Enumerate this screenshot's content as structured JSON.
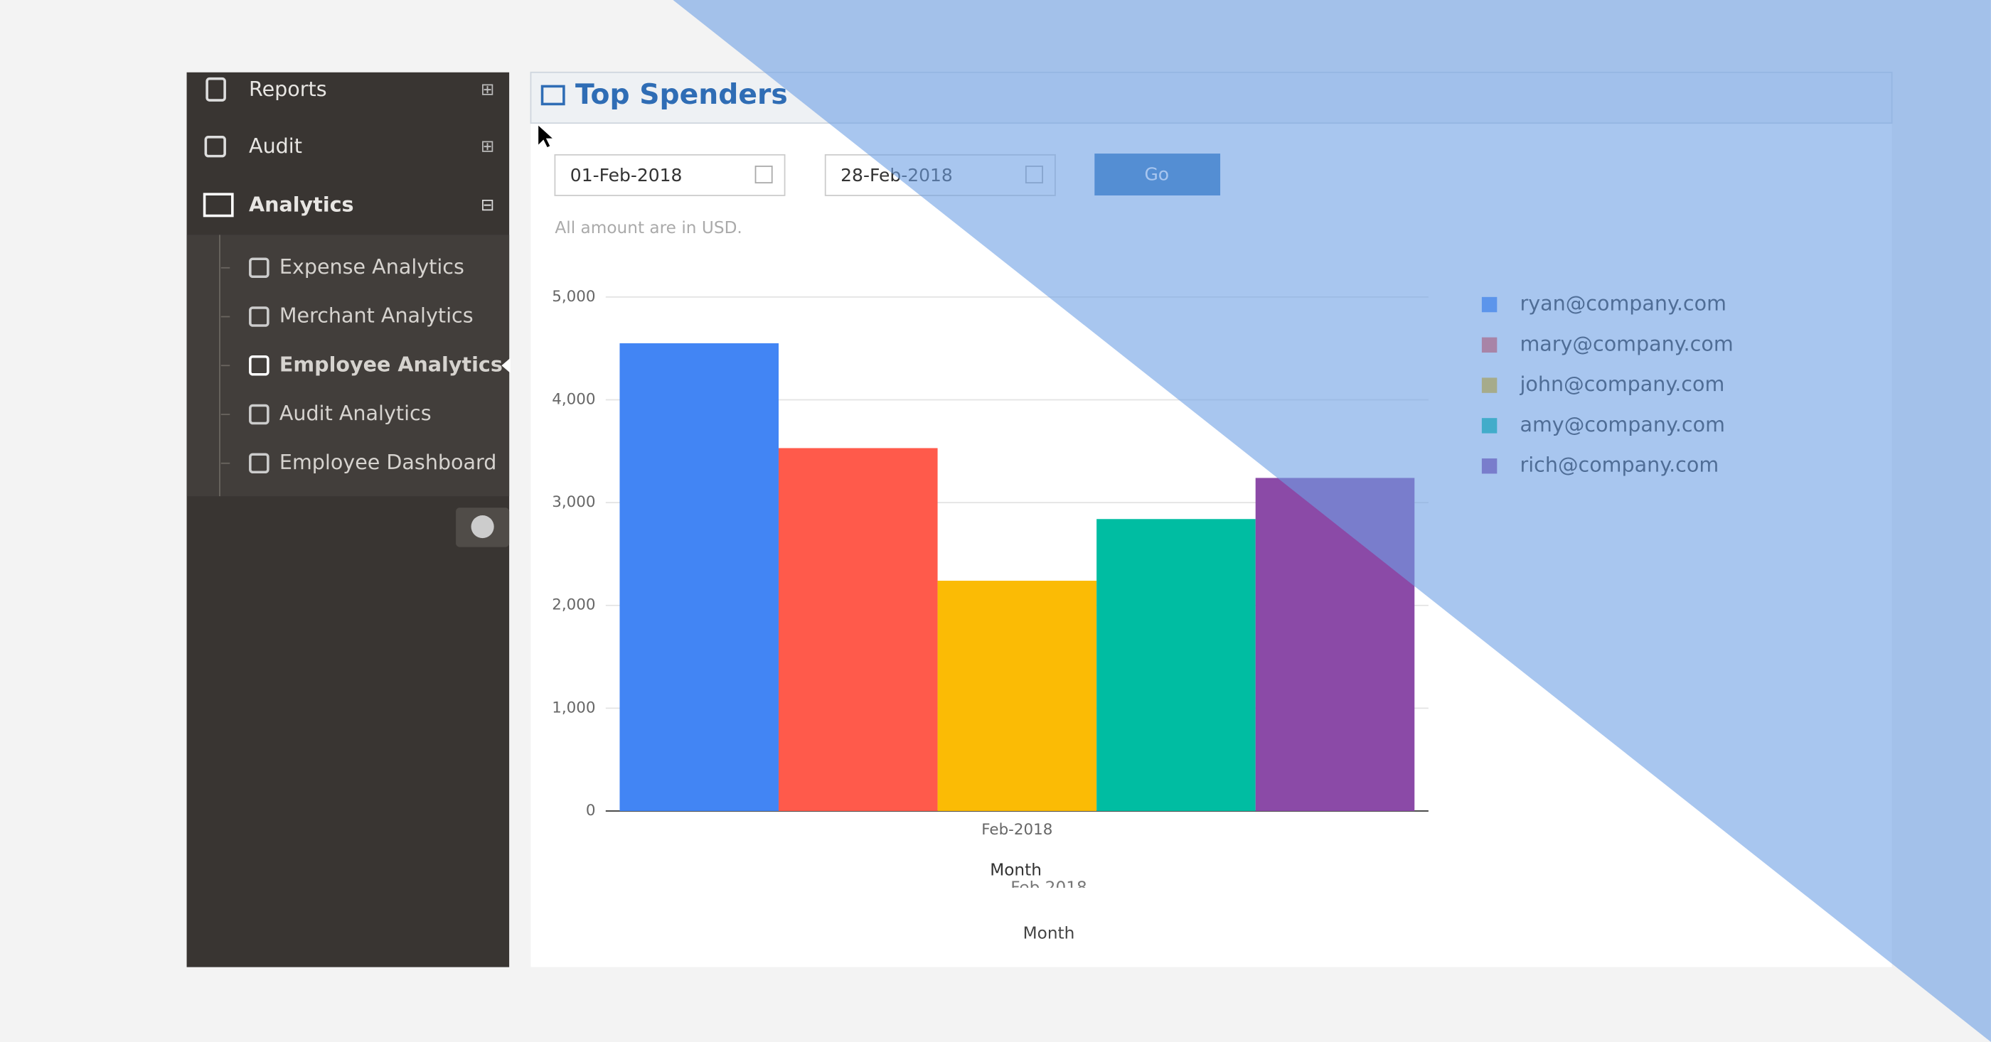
{
  "sidebar": {
    "items": [
      {
        "label": "Reports"
      },
      {
        "label": "Audit"
      },
      {
        "label": "Analytics"
      }
    ],
    "subitems": [
      {
        "label": "Expense Analytics"
      },
      {
        "label": "Merchant Analytics"
      },
      {
        "label": "Employee Analytics"
      },
      {
        "label": "Audit Analytics"
      },
      {
        "label": "Employee Dashboard"
      }
    ]
  },
  "header": {
    "title": "Top Spenders"
  },
  "form": {
    "start_date": "01-Feb-2018",
    "end_date": "28-Feb-2018",
    "button": "Go",
    "note": "All amount are in USD."
  },
  "ghost_labels": [
    "Feb 2018",
    "Month"
  ],
  "chart_data": {
    "type": "bar",
    "x_label": "Month",
    "categories": [
      "Feb-2018"
    ],
    "series": [
      {
        "name": "ryan@company.com",
        "color": "#4285f4",
        "values": [
          4550
        ]
      },
      {
        "name": "mary@company.com",
        "color": "#ff5a4b",
        "values": [
          3530
        ]
      },
      {
        "name": "john@company.com",
        "color": "#fbbb05",
        "values": [
          2240
        ]
      },
      {
        "name": "amy@company.com",
        "color": "#00bda2",
        "values": [
          2840
        ]
      },
      {
        "name": "rich@company.com",
        "color": "#8b4aa7",
        "values": [
          3240
        ]
      }
    ],
    "ylim": [
      0,
      5000
    ],
    "yticks": [
      0,
      {
        "value": 1000,
        "label": "1,000"
      },
      {
        "value": 2000,
        "label": "2,000"
      },
      {
        "value": 3000,
        "label": "3,000"
      },
      {
        "value": 4000,
        "label": "4,000"
      },
      {
        "value": 5000,
        "label": "5,000"
      }
    ],
    "grid": true,
    "legend": "right"
  }
}
